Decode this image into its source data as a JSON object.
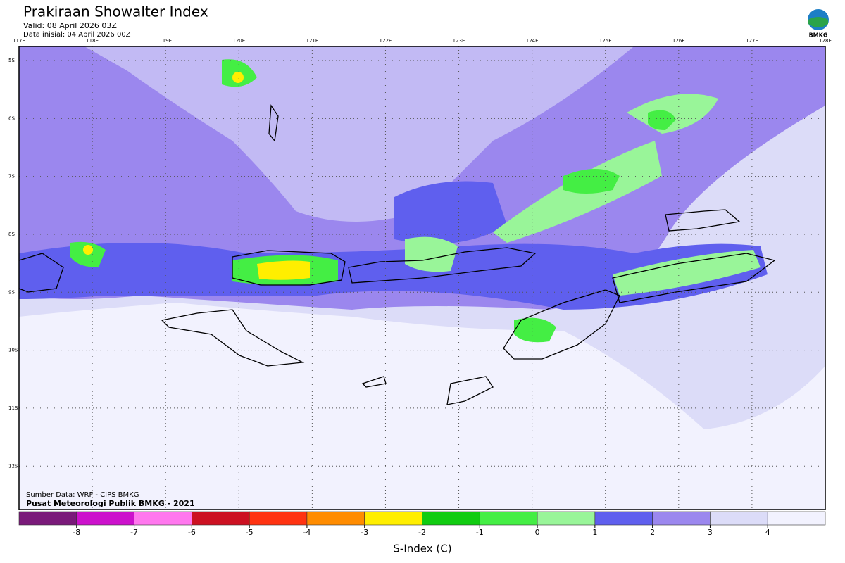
{
  "header": {
    "title": "Prakiraan Showalter Index",
    "valid": "Valid: 08 April 2026 03Z",
    "init": "Data inisial: 04 April 2026 00Z",
    "logo": "BMKG"
  },
  "map": {
    "xlim": [
      117,
      128
    ],
    "ylim": [
      -4.757,
      -12.75
    ],
    "xticks": [
      {
        "value": 117,
        "label": "117E"
      },
      {
        "value": 118,
        "label": "118E"
      },
      {
        "value": 119,
        "label": "119E"
      },
      {
        "value": 120,
        "label": "120E"
      },
      {
        "value": 121,
        "label": "121E"
      },
      {
        "value": 122,
        "label": "122E"
      },
      {
        "value": 123,
        "label": "123E"
      },
      {
        "value": 124,
        "label": "124E"
      },
      {
        "value": 125,
        "label": "125E"
      },
      {
        "value": 126,
        "label": "126E"
      },
      {
        "value": 127,
        "label": "127E"
      },
      {
        "value": 128,
        "label": "128E"
      }
    ],
    "yticks": [
      {
        "value": -5,
        "label": "5S"
      },
      {
        "value": -6,
        "label": "6S"
      },
      {
        "value": -7,
        "label": "7S"
      },
      {
        "value": -8,
        "label": "8S"
      },
      {
        "value": -9,
        "label": "9S"
      },
      {
        "value": -10,
        "label": "10S"
      },
      {
        "value": -11,
        "label": "11S"
      },
      {
        "value": -12,
        "label": "12S"
      }
    ],
    "source": "Sumber Data: WRF - CIPS BMKG",
    "credit": "Pusat Meteorologi Publik BMKG - 2021"
  },
  "colorbar": {
    "range": [
      -9,
      5
    ],
    "ticks": [
      -8,
      -7,
      -6,
      -5,
      -4,
      -3,
      -2,
      -1,
      0,
      1,
      2,
      3,
      4
    ],
    "colors": [
      "#7a1a7a",
      "#cc11cc",
      "#ff77ee",
      "#cc1122",
      "#ff3311",
      "#ff8c00",
      "#ffee00",
      "#11cc11",
      "#44ee44",
      "#99f599",
      "#5f5fee",
      "#9b87ee",
      "#dcdcf8",
      "#f2f2fe"
    ],
    "label": "S-Index (C)"
  }
}
